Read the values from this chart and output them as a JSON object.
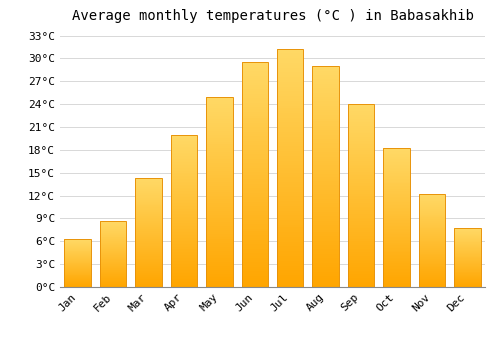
{
  "months": [
    "Jan",
    "Feb",
    "Mar",
    "Apr",
    "May",
    "Jun",
    "Jul",
    "Aug",
    "Sep",
    "Oct",
    "Nov",
    "Dec"
  ],
  "temperatures": [
    6.3,
    8.7,
    14.3,
    20.0,
    25.0,
    29.5,
    31.3,
    29.0,
    24.0,
    18.2,
    12.2,
    7.8
  ],
  "bar_color_top": "#FFD966",
  "bar_color_bottom": "#FFA500",
  "bar_edge_color": "#E8930A",
  "title": "Average monthly temperatures (°C ) in Babasakhib",
  "ylim": [
    0,
    34
  ],
  "yticks": [
    0,
    3,
    6,
    9,
    12,
    15,
    18,
    21,
    24,
    27,
    30,
    33
  ],
  "ytick_labels": [
    "0°C",
    "3°C",
    "6°C",
    "9°C",
    "12°C",
    "15°C",
    "18°C",
    "21°C",
    "24°C",
    "27°C",
    "30°C",
    "33°C"
  ],
  "bg_color": "#ffffff",
  "grid_color": "#d8d8d8",
  "title_fontsize": 10,
  "tick_fontsize": 8,
  "bar_width": 0.75
}
